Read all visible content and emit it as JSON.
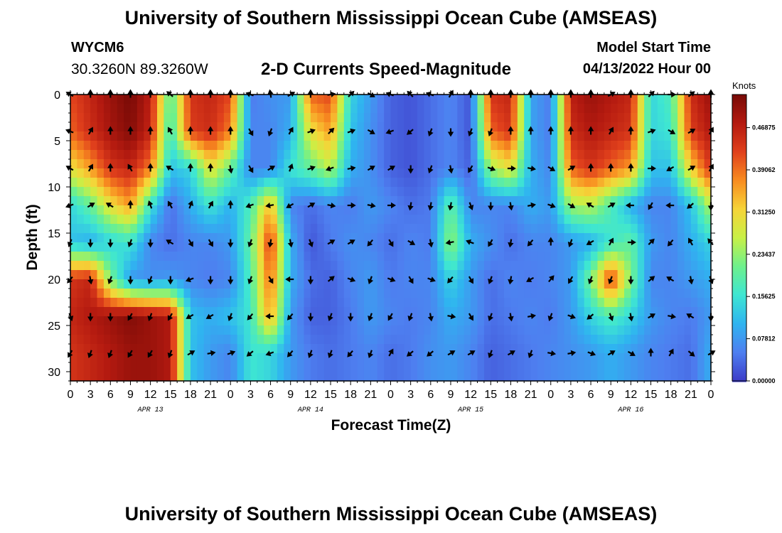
{
  "header": {
    "title": "University of Southern Mississippi Ocean Cube (AMSEAS)",
    "station_id": "WYCM6",
    "coordinates": "30.3260N  89.3260W",
    "subtitle": "2-D Currents Speed-Magnitude",
    "model_start_label": "Model Start Time",
    "model_start_value": "04/13/2022 Hour 00"
  },
  "footer": {
    "title": "University of Southern Mississippi Ocean Cube (AMSEAS)"
  },
  "chart_data": {
    "type": "heatmap",
    "title": "2-D Currents Speed-Magnitude",
    "xlabel": "Forecast Time(Z)",
    "ylabel": "Depth (ft)",
    "xlim": [
      0,
      96
    ],
    "ylim": [
      31,
      0
    ],
    "x_ticks": [
      0,
      3,
      6,
      9,
      12,
      15,
      18,
      21,
      24,
      27,
      30,
      33,
      36,
      39,
      42,
      45,
      48,
      51,
      54,
      57,
      60,
      63,
      66,
      69,
      72,
      75,
      78,
      81,
      84,
      87,
      90,
      93,
      96
    ],
    "x_tick_labels": [
      "0",
      "3",
      "6",
      "9",
      "12",
      "15",
      "18",
      "21",
      "0",
      "3",
      "6",
      "9",
      "12",
      "15",
      "18",
      "21",
      "0",
      "3",
      "6",
      "9",
      "12",
      "15",
      "18",
      "21",
      "0",
      "3",
      "6",
      "9",
      "12",
      "15",
      "18",
      "21",
      "0"
    ],
    "date_labels": [
      {
        "label": "APR 13",
        "x": 12
      },
      {
        "label": "APR 14",
        "x": 36
      },
      {
        "label": "APR 15",
        "x": 60
      },
      {
        "label": "APR 16",
        "x": 84
      }
    ],
    "y_ticks": [
      0,
      5,
      10,
      15,
      20,
      25,
      30
    ],
    "y_tick_labels": [
      "0",
      "5",
      "10",
      "15",
      "20",
      "25",
      "30"
    ],
    "colorbar": {
      "label": "Knots",
      "min": 0,
      "max": 0.53,
      "ticks": [
        0.0,
        0.07812,
        0.15625,
        0.23437,
        0.3125,
        0.39062,
        0.46875
      ],
      "tick_labels": [
        "0.00000",
        "0.07812",
        "0.15625",
        "0.23437",
        "0.31250",
        "0.39062",
        "0.46875"
      ],
      "colors": [
        "#3c3cc8",
        "#4e7ff0",
        "#2fb4f0",
        "#3ee6d2",
        "#6ef08c",
        "#c8f046",
        "#f6d438",
        "#f88c20",
        "#e0401c",
        "#b41a10",
        "#780a06"
      ]
    },
    "depths_ft": [
      0,
      4,
      8,
      12,
      16,
      20,
      24,
      28
    ],
    "times_hr": [
      0,
      3,
      6,
      9,
      12,
      15,
      18,
      21,
      24,
      27,
      30,
      33,
      36,
      39,
      42,
      45,
      48,
      51,
      54,
      57,
      60,
      63,
      66,
      69,
      72,
      75,
      78,
      81,
      84,
      87,
      90,
      93,
      96
    ],
    "speed_knots": [
      [
        0.42,
        0.46,
        0.5,
        0.53,
        0.47,
        0.18,
        0.44,
        0.46,
        0.42,
        0.05,
        0.07,
        0.08,
        0.4,
        0.42,
        0.14,
        0.08,
        0.03,
        0.02,
        0.04,
        0.06,
        0.02,
        0.44,
        0.46,
        0.09,
        0.05,
        0.47,
        0.5,
        0.48,
        0.46,
        0.14,
        0.18,
        0.45,
        0.5
      ],
      [
        0.4,
        0.45,
        0.49,
        0.52,
        0.46,
        0.16,
        0.43,
        0.45,
        0.38,
        0.06,
        0.06,
        0.1,
        0.3,
        0.36,
        0.12,
        0.07,
        0.03,
        0.02,
        0.04,
        0.06,
        0.02,
        0.4,
        0.44,
        0.09,
        0.05,
        0.45,
        0.48,
        0.46,
        0.44,
        0.14,
        0.16,
        0.43,
        0.48
      ],
      [
        0.3,
        0.36,
        0.44,
        0.46,
        0.38,
        0.12,
        0.14,
        0.3,
        0.2,
        0.06,
        0.06,
        0.16,
        0.2,
        0.26,
        0.1,
        0.07,
        0.03,
        0.02,
        0.04,
        0.06,
        0.03,
        0.24,
        0.3,
        0.1,
        0.06,
        0.4,
        0.44,
        0.4,
        0.36,
        0.12,
        0.12,
        0.32,
        0.44
      ],
      [
        0.14,
        0.2,
        0.3,
        0.36,
        0.16,
        0.04,
        0.1,
        0.16,
        0.1,
        0.18,
        0.34,
        0.06,
        0.04,
        0.06,
        0.05,
        0.08,
        0.06,
        0.04,
        0.05,
        0.2,
        0.06,
        0.06,
        0.06,
        0.1,
        0.08,
        0.24,
        0.26,
        0.18,
        0.1,
        0.06,
        0.06,
        0.12,
        0.26
      ],
      [
        0.12,
        0.1,
        0.14,
        0.16,
        0.06,
        0.04,
        0.06,
        0.06,
        0.08,
        0.2,
        0.44,
        0.1,
        0.02,
        0.05,
        0.07,
        0.06,
        0.04,
        0.06,
        0.05,
        0.24,
        0.1,
        0.07,
        0.04,
        0.06,
        0.06,
        0.08,
        0.1,
        0.16,
        0.2,
        0.08,
        0.06,
        0.1,
        0.14
      ],
      [
        0.44,
        0.46,
        0.22,
        0.08,
        0.07,
        0.08,
        0.06,
        0.05,
        0.06,
        0.18,
        0.4,
        0.1,
        0.04,
        0.03,
        0.06,
        0.08,
        0.05,
        0.06,
        0.06,
        0.14,
        0.08,
        0.04,
        0.06,
        0.05,
        0.06,
        0.08,
        0.22,
        0.44,
        0.22,
        0.06,
        0.06,
        0.08,
        0.1
      ],
      [
        0.46,
        0.48,
        0.5,
        0.52,
        0.5,
        0.48,
        0.12,
        0.1,
        0.12,
        0.16,
        0.36,
        0.08,
        0.03,
        0.03,
        0.05,
        0.08,
        0.06,
        0.05,
        0.06,
        0.1,
        0.08,
        0.04,
        0.05,
        0.06,
        0.05,
        0.08,
        0.14,
        0.18,
        0.14,
        0.08,
        0.06,
        0.05,
        0.08
      ],
      [
        0.44,
        0.46,
        0.48,
        0.5,
        0.5,
        0.48,
        0.12,
        0.08,
        0.06,
        0.16,
        0.14,
        0.08,
        0.05,
        0.04,
        0.05,
        0.06,
        0.04,
        0.05,
        0.07,
        0.08,
        0.06,
        0.03,
        0.04,
        0.05,
        0.06,
        0.07,
        0.08,
        0.1,
        0.08,
        0.06,
        0.05,
        0.04,
        0.1
      ]
    ],
    "direction_deg": [
      [
        300,
        0,
        0,
        0,
        0,
        310,
        0,
        0,
        0,
        290,
        350,
        60,
        0,
        80,
        45,
        120,
        290,
        315,
        290,
        30,
        0,
        0,
        0,
        0,
        0,
        0,
        0,
        60,
        0,
        45,
        90,
        50,
        0
      ],
      [
        290,
        30,
        0,
        0,
        0,
        330,
        0,
        0,
        0,
        150,
        200,
        30,
        70,
        45,
        70,
        120,
        250,
        230,
        200,
        180,
        200,
        200,
        0,
        0,
        0,
        0,
        0,
        30,
        0,
        70,
        120,
        60,
        30
      ],
      [
        300,
        30,
        0,
        330,
        0,
        300,
        0,
        0,
        170,
        150,
        60,
        20,
        70,
        250,
        80,
        60,
        60,
        180,
        200,
        170,
        210,
        110,
        90,
        100,
        120,
        60,
        0,
        0,
        0,
        90,
        240,
        60,
        30
      ],
      [
        250,
        60,
        300,
        0,
        340,
        330,
        20,
        30,
        0,
        250,
        260,
        240,
        60,
        100,
        90,
        100,
        90,
        190,
        190,
        190,
        160,
        180,
        170,
        80,
        110,
        120,
        300,
        60,
        270,
        210,
        270,
        230,
        180
      ],
      [
        200,
        180,
        180,
        200,
        180,
        300,
        150,
        150,
        180,
        200,
        190,
        170,
        160,
        60,
        60,
        220,
        150,
        120,
        170,
        260,
        290,
        210,
        190,
        220,
        0,
        200,
        240,
        30,
        90,
        45,
        220,
        330,
        320
      ],
      [
        220,
        170,
        200,
        180,
        200,
        180,
        250,
        180,
        180,
        200,
        150,
        270,
        180,
        50,
        110,
        200,
        110,
        150,
        110,
        220,
        150,
        200,
        190,
        240,
        40,
        210,
        200,
        200,
        180,
        50,
        300,
        170,
        160
      ],
      [
        160,
        180,
        180,
        210,
        200,
        210,
        240,
        240,
        200,
        220,
        270,
        220,
        180,
        200,
        180,
        200,
        210,
        200,
        170,
        100,
        150,
        200,
        170,
        80,
        200,
        110,
        230,
        160,
        170,
        60,
        100,
        300,
        180
      ],
      [
        210,
        200,
        200,
        210,
        210,
        200,
        60,
        80,
        70,
        230,
        250,
        220,
        200,
        200,
        220,
        200,
        30,
        230,
        230,
        60,
        60,
        200,
        60,
        200,
        100,
        80,
        110,
        60,
        120,
        0,
        30,
        130,
        60
      ]
    ]
  }
}
